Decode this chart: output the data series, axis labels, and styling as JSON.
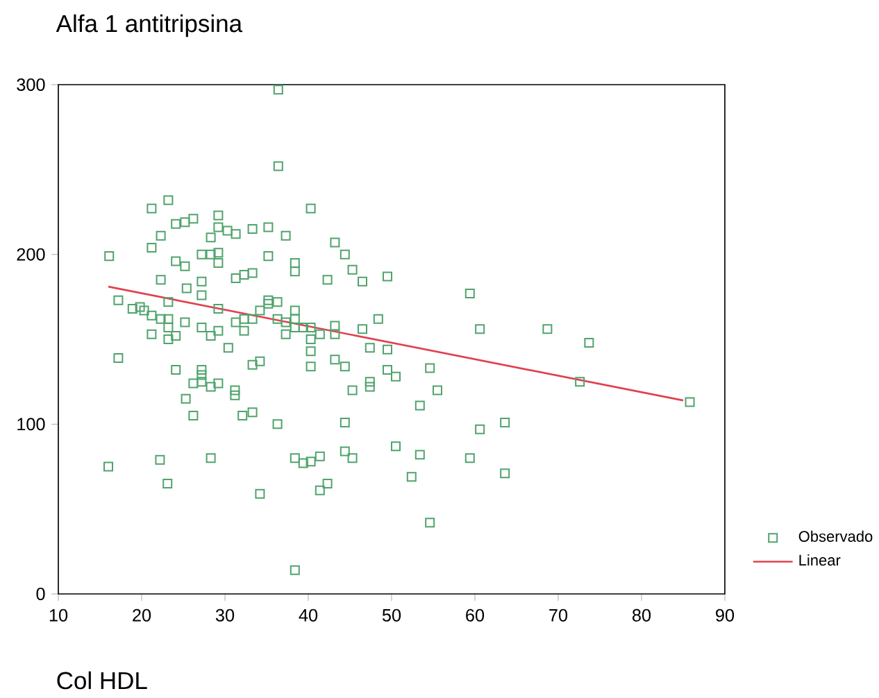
{
  "chart_data": {
    "type": "scatter",
    "ylabel": "Alfa 1 antitripsina",
    "xlabel": "Col HDL",
    "xlim": [
      10,
      90
    ],
    "xticks": [
      10,
      20,
      30,
      40,
      50,
      60,
      70,
      80,
      90
    ],
    "ylim": [
      0,
      300
    ],
    "yticks": [
      0,
      100,
      200,
      300
    ],
    "grid": false,
    "legend": "bottom right",
    "series": [
      {
        "name": "Observado",
        "type": "scatter",
        "marker": "square",
        "color": "#4fa36c",
        "x": [
          36.4,
          36.4,
          21.2,
          23.2,
          40.3,
          16.1,
          21.2,
          22.3,
          24.1,
          25.2,
          26.2,
          29.2,
          29.2,
          30.3,
          31.3,
          33.3,
          35.2,
          37.3,
          28.3,
          27.2,
          29.2,
          29.2,
          28.3,
          24.1,
          25.2,
          35.2,
          38.4,
          38.4,
          43.2,
          44.4,
          45.3,
          46.5,
          49.5,
          22.3,
          27.2,
          27.2,
          25.4,
          31.3,
          32.3,
          33.3,
          42.3,
          17.2,
          18.9,
          19.8,
          20.3,
          21.2,
          22.3,
          23.2,
          23.2,
          25.2,
          21.2,
          23.2,
          23.2,
          24.1,
          27.2,
          28.3,
          29.2,
          29.2,
          31.3,
          32.3,
          32.3,
          33.3,
          34.2,
          35.2,
          35.2,
          36.3,
          36.3,
          37.3,
          37.3,
          38.4,
          38.4,
          38.4,
          39.4,
          40.3,
          40.3,
          41.4,
          43.2,
          43.2,
          46.5,
          48.4,
          30.4,
          47.4,
          49.5,
          17.2,
          33.3,
          34.2,
          40.3,
          40.3,
          43.2,
          44.4,
          24.1,
          27.2,
          49.5,
          50.5,
          27.2,
          26.2,
          27.2,
          28.3,
          29.2,
          31.2,
          31.2,
          25.3,
          26.2,
          32.1,
          33.3,
          36.3,
          44.4,
          45.3,
          47.4,
          47.4,
          50.5,
          16.0,
          22.2,
          28.3,
          23.1,
          38.4,
          39.4,
          40.3,
          41.4,
          44.4,
          45.3,
          41.4,
          42.3,
          34.2,
          38.4,
          59.4,
          60.6,
          68.7,
          73.7,
          72.6,
          85.8,
          54.6,
          55.5,
          53.4,
          60.6,
          63.6,
          53.4,
          52.4,
          59.4,
          63.6,
          54.6
        ],
        "values": [
          297,
          252,
          227,
          232,
          227,
          199,
          204,
          211,
          218,
          219,
          221,
          223,
          216,
          214,
          212,
          215,
          216,
          211,
          210,
          200,
          201,
          195,
          200,
          196,
          193,
          199,
          195,
          190,
          207,
          200,
          191,
          184,
          187,
          185,
          184,
          176,
          180,
          186,
          188,
          189,
          185,
          173,
          168,
          169,
          167,
          164,
          162,
          162,
          172,
          160,
          153,
          157,
          150,
          152,
          157,
          152,
          155,
          168,
          160,
          162,
          155,
          162,
          167,
          171,
          173,
          172,
          162,
          160,
          153,
          167,
          162,
          157,
          157,
          157,
          150,
          153,
          158,
          153,
          156,
          162,
          145,
          145,
          144,
          139,
          135,
          137,
          143,
          134,
          138,
          134,
          132,
          132,
          132,
          128,
          129,
          124,
          125,
          122,
          124,
          120,
          117,
          115,
          105,
          105,
          107,
          100,
          101,
          120,
          125,
          122,
          87,
          75,
          79,
          80,
          65,
          80,
          77,
          78,
          81,
          84,
          80,
          61,
          65,
          59,
          14,
          177,
          156,
          156,
          148,
          125,
          113,
          133,
          120,
          111,
          97,
          101,
          82,
          69,
          80,
          71,
          42
        ]
      },
      {
        "name": "Linear",
        "type": "line",
        "marker": "none",
        "color": "#e0414f",
        "x": [
          16,
          85
        ],
        "values": [
          181,
          114
        ]
      }
    ]
  }
}
